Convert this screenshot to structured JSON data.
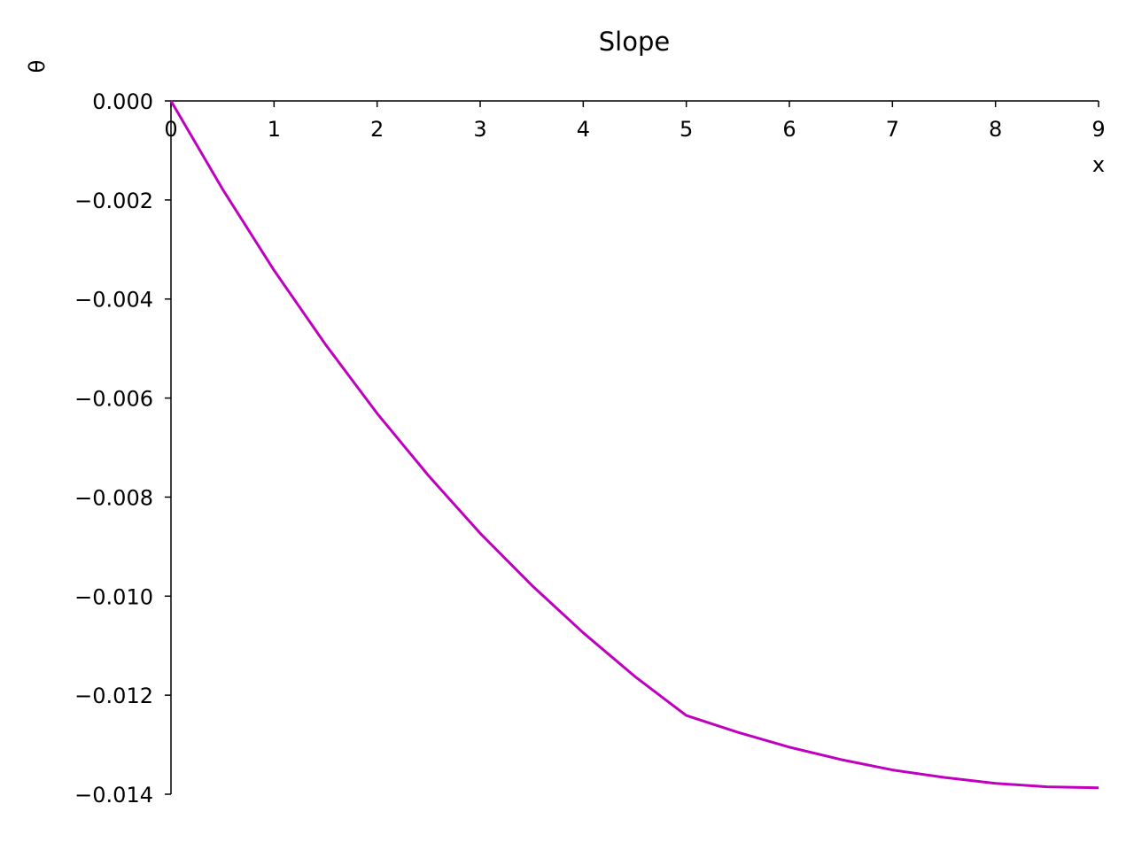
{
  "chart_data": {
    "type": "line",
    "title": "Slope",
    "x_label": "x",
    "y_label": "θ",
    "x": [
      0,
      0.5,
      1,
      1.5,
      2,
      2.5,
      3,
      3.5,
      4,
      4.5,
      5,
      5.5,
      6,
      6.5,
      7,
      7.5,
      8,
      8.5,
      9
    ],
    "values": [
      0,
      -0.00178,
      -0.00342,
      -0.00492,
      -0.00631,
      -0.00757,
      -0.00873,
      -0.00978,
      -0.01074,
      -0.01162,
      -0.01241,
      -0.01275,
      -0.01305,
      -0.0133,
      -0.01351,
      -0.01366,
      -0.01378,
      -0.01385,
      -0.01387
    ],
    "color": "#bf00bf",
    "xlim": [
      0,
      9
    ],
    "ylim": [
      -0.014,
      0
    ],
    "xticks": [
      0,
      1,
      2,
      3,
      4,
      5,
      6,
      7,
      8,
      9
    ],
    "yticks": [
      {
        "value": 0,
        "label": "0.000"
      },
      {
        "value": -0.002,
        "label": "−0.002"
      },
      {
        "value": -0.004,
        "label": "−0.004"
      },
      {
        "value": -0.006,
        "label": "−0.006"
      },
      {
        "value": -0.008,
        "label": "−0.008"
      },
      {
        "value": -0.01,
        "label": "−0.010"
      },
      {
        "value": -0.012,
        "label": "−0.012"
      },
      {
        "value": -0.014,
        "label": "−0.014"
      }
    ],
    "grid": false
  }
}
